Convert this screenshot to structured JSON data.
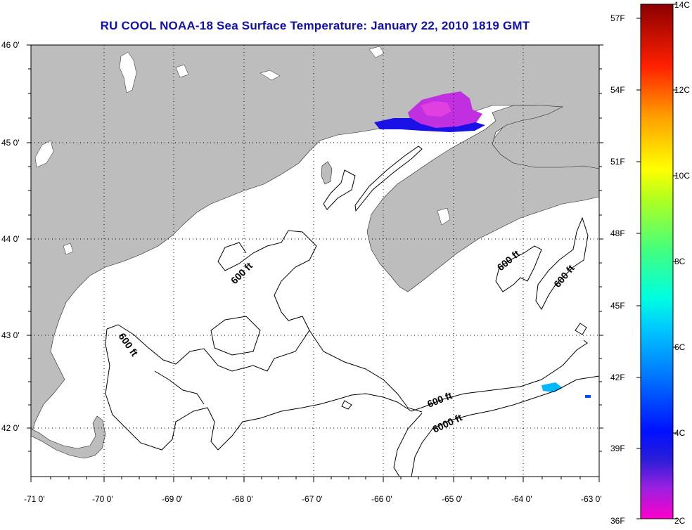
{
  "title": "RU COOL  NOAA-18  Sea Surface Temperature:  January 22, 2010 1819 GMT",
  "colors": {
    "land": "#bdbdbd",
    "water": "#ffffff",
    "title": "#1010b0"
  },
  "map": {
    "lat_ticks": [
      "46 0'",
      "45 0'",
      "44 0'",
      "43 0'",
      "42 0'"
    ],
    "lon_ticks": [
      "-71 0'",
      "-70 0'",
      "-69 0'",
      "-68 0'",
      "-67 0'",
      "-66 0'",
      "-65 0'",
      "-64 0'",
      "-63 0'"
    ],
    "contour_labels": [
      "600 ft",
      "600 ft",
      "600 ft",
      "600 ft",
      "600 ft",
      "6000 ft"
    ]
  },
  "colorbar": {
    "fahrenheit_labels": [
      "57F",
      "54F",
      "51F",
      "48F",
      "45F",
      "42F",
      "39F",
      "36F"
    ],
    "celsius_labels": [
      "14C",
      "12C",
      "10C",
      "8C",
      "6C",
      "4C",
      "2C"
    ]
  }
}
